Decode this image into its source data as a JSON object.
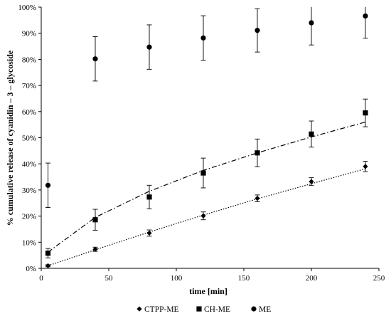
{
  "chart_data": {
    "type": "scatter",
    "xlabel": "time [min]",
    "ylabel": "% cumulative release of  cyanidin – 3 – glycoside",
    "xlim": [
      0,
      250
    ],
    "ylim": [
      0,
      100
    ],
    "x_ticks": [
      "0",
      "50",
      "100",
      "150",
      "200",
      "250"
    ],
    "y_ticks": [
      "0%",
      "10%",
      "20%",
      "30%",
      "40%",
      "50%",
      "60%",
      "70%",
      "80%",
      "90%",
      "100%"
    ],
    "grid": false,
    "legend_position": "bottom",
    "series": [
      {
        "name": "CTPP-ME",
        "marker": "diamond",
        "trendline": "dotted",
        "x": [
          5,
          40,
          80,
          120,
          160,
          200,
          240
        ],
        "y": [
          1.0,
          7.3,
          13.5,
          20.1,
          26.8,
          33.2,
          39.0
        ],
        "err": [
          0.4,
          0.8,
          1.2,
          1.5,
          1.3,
          1.5,
          2.0
        ],
        "trend_y": [
          1.0,
          7.1,
          13.9,
          20.4,
          26.6,
          32.4,
          38.1
        ]
      },
      {
        "name": "CH-ME",
        "marker": "square",
        "trendline": "dashdot",
        "x": [
          5,
          40,
          80,
          120,
          160,
          200,
          240
        ],
        "y": [
          5.8,
          18.6,
          27.3,
          36.5,
          44.2,
          51.4,
          59.5
        ],
        "err": [
          1.8,
          4.0,
          4.5,
          5.7,
          5.3,
          5.0,
          5.3
        ],
        "trend_y": [
          6.2,
          19.5,
          29.5,
          37.5,
          44.2,
          50.3,
          56.0
        ]
      },
      {
        "name": "ME",
        "marker": "circle",
        "trendline": "none",
        "x": [
          5,
          40,
          80,
          120,
          160,
          200,
          240
        ],
        "y": [
          31.8,
          80.2,
          84.7,
          88.2,
          91.1,
          94.0,
          96.6
        ],
        "err": [
          8.5,
          8.5,
          8.5,
          8.5,
          8.3,
          8.5,
          8.5
        ]
      }
    ]
  }
}
